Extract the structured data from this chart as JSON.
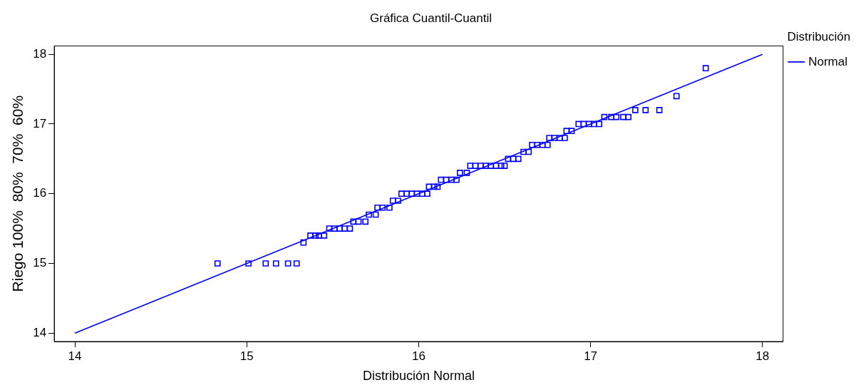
{
  "chart_data": {
    "type": "scatter",
    "title": "Gráfica Cuantil-Cuantil",
    "xlabel": "Distribución Normal",
    "ylabel": "Riego 100%  80%  70%  60%",
    "legend_title": "Distribución",
    "legend": "right",
    "grid": false,
    "xlim": [
      13.88,
      18.12
    ],
    "ylim": [
      13.88,
      18.12
    ],
    "xticks": [
      14,
      15,
      16,
      17,
      18
    ],
    "yticks": [
      14,
      15,
      16,
      17,
      18
    ],
    "series": [
      {
        "type": "scatter",
        "marker": "square",
        "color": "#0000ff",
        "x": [
          14.83,
          15.01,
          15.11,
          15.17,
          15.24,
          15.29,
          15.33,
          15.37,
          15.4,
          15.42,
          15.45,
          15.48,
          15.51,
          15.54,
          15.57,
          15.6,
          15.62,
          15.65,
          15.69,
          15.71,
          15.75,
          15.76,
          15.79,
          15.83,
          15.85,
          15.88,
          15.9,
          15.93,
          15.96,
          15.99,
          16.02,
          16.05,
          16.06,
          16.09,
          16.11,
          16.13,
          16.16,
          16.19,
          16.22,
          16.24,
          16.28,
          16.3,
          16.33,
          16.36,
          16.39,
          16.42,
          16.45,
          16.48,
          16.5,
          16.52,
          16.55,
          16.58,
          16.61,
          16.64,
          16.66,
          16.69,
          16.72,
          16.75,
          16.76,
          16.79,
          16.82,
          16.85,
          16.86,
          16.89,
          16.93,
          16.96,
          16.99,
          17.02,
          17.05,
          17.08,
          17.12,
          17.15,
          17.19,
          17.22,
          17.26,
          17.32,
          17.4,
          17.5,
          17.67
        ],
        "values": [
          15,
          15,
          15,
          15,
          15,
          15,
          15.3,
          15.4,
          15.4,
          15.4,
          15.4,
          15.5,
          15.5,
          15.5,
          15.5,
          15.5,
          15.6,
          15.6,
          15.6,
          15.7,
          15.7,
          15.8,
          15.8,
          15.8,
          15.9,
          15.9,
          16,
          16,
          16,
          16,
          16,
          16,
          16.1,
          16.1,
          16.1,
          16.2,
          16.2,
          16.2,
          16.2,
          16.3,
          16.3,
          16.4,
          16.4,
          16.4,
          16.4,
          16.4,
          16.4,
          16.4,
          16.4,
          16.5,
          16.5,
          16.5,
          16.6,
          16.6,
          16.7,
          16.7,
          16.7,
          16.7,
          16.8,
          16.8,
          16.8,
          16.8,
          16.9,
          16.9,
          17,
          17,
          17,
          17,
          17,
          17.1,
          17.1,
          17.1,
          17.1,
          17.1,
          17.2,
          17.2,
          17.2,
          17.4,
          17.8
        ]
      },
      {
        "type": "line",
        "marker": "none",
        "name": "Normal",
        "color": "#0000ff",
        "x": [
          14,
          18
        ],
        "values": [
          14,
          18
        ]
      }
    ]
  }
}
